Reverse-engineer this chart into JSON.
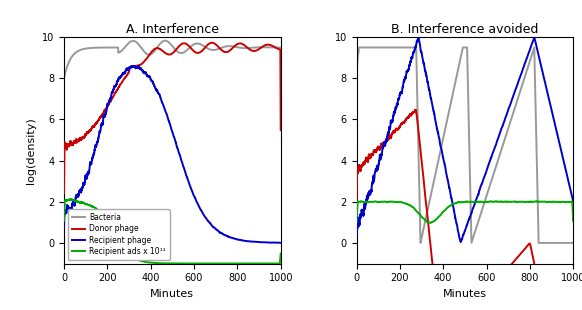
{
  "panel_A_title": "A. Interference",
  "panel_B_title": "B. Interference avoided",
  "xlabel": "Minutes",
  "ylabel": "log(density)",
  "xlim": [
    0,
    1000
  ],
  "ylim": [
    -1,
    10
  ],
  "yticks": [
    0,
    2,
    4,
    6,
    8,
    10
  ],
  "xticks": [
    0,
    200,
    400,
    600,
    800,
    1000
  ],
  "colors": {
    "bacteria": "#999999",
    "donor": "#cc0000",
    "recipient": "#0000cc",
    "ads": "#00aa00"
  },
  "legend_labels": [
    "Bacteria",
    "Donor phage",
    "Recipient phage",
    "Recipient ads x 10¹¹"
  ],
  "linewidth": 1.4
}
